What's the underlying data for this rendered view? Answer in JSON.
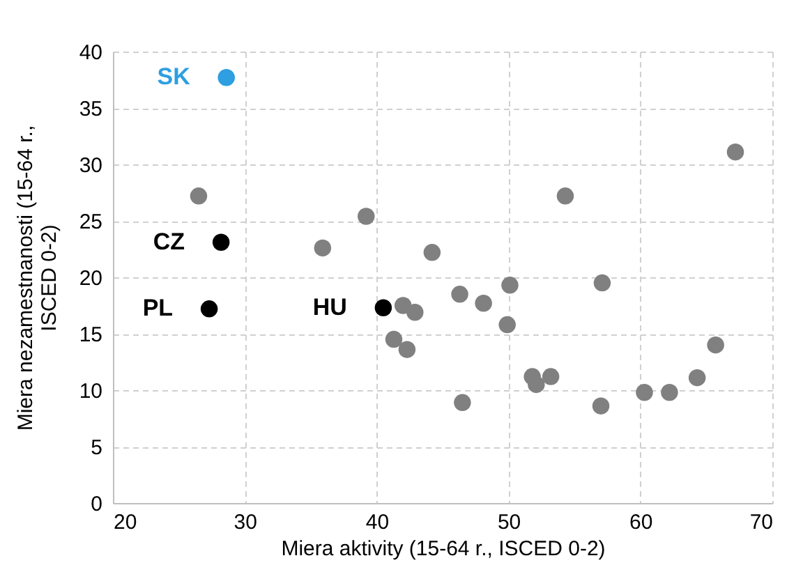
{
  "chart_data": {
    "type": "scatter",
    "xlabel": "Miera aktivity (15-64 r., ISCED 0-2)",
    "ylabel": "Miera nezamestnanosti (15-64 r., ISCED 0-2)",
    "xlim": [
      20,
      70
    ],
    "xticks": [
      20,
      30,
      40,
      50,
      60,
      70
    ],
    "ylim": [
      0,
      40
    ],
    "yticks": [
      0,
      5,
      10,
      15,
      20,
      25,
      30,
      35,
      40
    ],
    "grid": true,
    "marker": "circle",
    "series": [
      {
        "color": "#808080",
        "x": [
          26.5,
          39.2,
          35.9,
          44.2,
          67.2,
          54.3,
          42.0,
          42.9,
          46.3,
          48.1,
          50.1,
          49.9,
          57.1,
          41.3,
          42.3,
          51.8,
          52.1,
          53.2,
          46.5,
          57.0,
          60.3,
          62.2,
          64.3,
          65.7
        ],
        "values": [
          27.2,
          25.4,
          22.6,
          22.2,
          31.1,
          27.2,
          17.5,
          16.9,
          18.5,
          17.7,
          19.3,
          15.8,
          19.5,
          14.5,
          13.6,
          11.2,
          10.5,
          11.2,
          8.9,
          8.6,
          9.8,
          9.8,
          11.1,
          14.0
        ]
      },
      {
        "name": "SK",
        "color": "#2e9fe0",
        "x": [
          28.6
        ],
        "values": [
          37.7
        ]
      },
      {
        "name": "CZ",
        "color": "#000000",
        "x": [
          28.2
        ],
        "values": [
          23.1
        ]
      },
      {
        "name": "PL",
        "color": "#000000",
        "x": [
          27.3
        ],
        "values": [
          17.2
        ]
      },
      {
        "name": "HU",
        "color": "#000000",
        "x": [
          40.5
        ],
        "values": [
          17.3
        ]
      }
    ]
  }
}
